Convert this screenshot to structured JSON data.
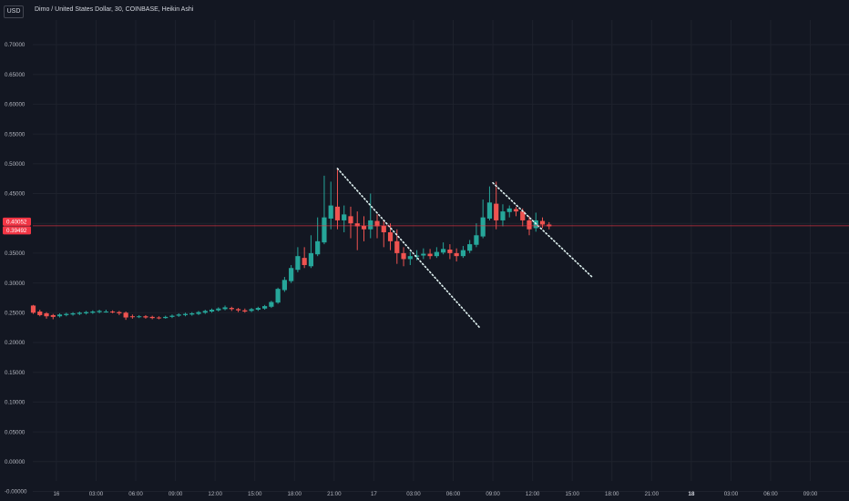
{
  "header": {
    "currency": "USD",
    "title": "Dimo / United States Dollar, 30, COINBASE, Heikin Ashi"
  },
  "colors": {
    "background": "#131722",
    "grid": "#1e222d",
    "up": "#26a69a",
    "down": "#ef5350",
    "trendline": "#e0f2f1",
    "price_line": "#f23645"
  },
  "chart_data": {
    "type": "candlestick",
    "style": "Heikin Ashi",
    "interval": "30",
    "exchange": "COINBASE",
    "grid": true,
    "ylim": [
      -0.03,
      0.73
    ],
    "y_ticks": [
      "0.70000",
      "0.65000",
      "0.60000",
      "0.55000",
      "0.50000",
      "0.45000",
      "0.40000",
      "0.35000",
      "0.30000",
      "0.25000",
      "0.20000",
      "0.15000",
      "0.10000",
      "0.05000",
      "0.00000",
      "-0.00000"
    ],
    "x_ticks": [
      {
        "label": "16",
        "bold": false,
        "bar": 3.5
      },
      {
        "label": "03:00",
        "bold": false,
        "bar": 9.5
      },
      {
        "label": "06:00",
        "bold": false,
        "bar": 15.5
      },
      {
        "label": "09:00",
        "bold": false,
        "bar": 21.5
      },
      {
        "label": "12:00",
        "bold": false,
        "bar": 27.5
      },
      {
        "label": "15:00",
        "bold": false,
        "bar": 33.5
      },
      {
        "label": "18:00",
        "bold": false,
        "bar": 39.5
      },
      {
        "label": "21:00",
        "bold": false,
        "bar": 45.5
      },
      {
        "label": "17",
        "bold": false,
        "bar": 51.5
      },
      {
        "label": "03:00",
        "bold": false,
        "bar": 57.5
      },
      {
        "label": "06:00",
        "bold": false,
        "bar": 63.5
      },
      {
        "label": "09:00",
        "bold": false,
        "bar": 69.5
      },
      {
        "label": "12:00",
        "bold": false,
        "bar": 75.5
      },
      {
        "label": "15:00",
        "bold": false,
        "bar": 81.5
      },
      {
        "label": "18:00",
        "bold": false,
        "bar": 87.5
      },
      {
        "label": "21:00",
        "bold": false,
        "bar": 93.5
      },
      {
        "label": "18",
        "bold": true,
        "bar": 99.5
      },
      {
        "label": "03:00",
        "bold": false,
        "bar": 105.5
      },
      {
        "label": "06:00",
        "bold": false,
        "bar": 111.5
      },
      {
        "label": "09:00",
        "bold": false,
        "bar": 117.5
      }
    ],
    "candles": [
      [
        0.262,
        0.25,
        0.263,
        0.248
      ],
      [
        0.252,
        0.246,
        0.255,
        0.244
      ],
      [
        0.249,
        0.244,
        0.251,
        0.24
      ],
      [
        0.246,
        0.243,
        0.248,
        0.239
      ],
      [
        0.244,
        0.247,
        0.249,
        0.242
      ],
      [
        0.246,
        0.248,
        0.25,
        0.244
      ],
      [
        0.247,
        0.249,
        0.251,
        0.245
      ],
      [
        0.248,
        0.25,
        0.252,
        0.246
      ],
      [
        0.249,
        0.251,
        0.253,
        0.247
      ],
      [
        0.25,
        0.252,
        0.254,
        0.248
      ],
      [
        0.251,
        0.253,
        0.255,
        0.249
      ],
      [
        0.252,
        0.252,
        0.255,
        0.25
      ],
      [
        0.252,
        0.251,
        0.254,
        0.249
      ],
      [
        0.251,
        0.249,
        0.253,
        0.246
      ],
      [
        0.25,
        0.242,
        0.252,
        0.238
      ],
      [
        0.244,
        0.243,
        0.247,
        0.24
      ],
      [
        0.243,
        0.244,
        0.246,
        0.241
      ],
      [
        0.244,
        0.242,
        0.246,
        0.24
      ],
      [
        0.243,
        0.241,
        0.245,
        0.239
      ],
      [
        0.242,
        0.241,
        0.244,
        0.239
      ],
      [
        0.241,
        0.243,
        0.245,
        0.24
      ],
      [
        0.243,
        0.245,
        0.247,
        0.241
      ],
      [
        0.245,
        0.247,
        0.249,
        0.243
      ],
      [
        0.246,
        0.248,
        0.25,
        0.244
      ],
      [
        0.247,
        0.249,
        0.251,
        0.245
      ],
      [
        0.248,
        0.251,
        0.253,
        0.246
      ],
      [
        0.25,
        0.253,
        0.255,
        0.248
      ],
      [
        0.252,
        0.255,
        0.257,
        0.25
      ],
      [
        0.254,
        0.257,
        0.259,
        0.252
      ],
      [
        0.256,
        0.259,
        0.262,
        0.254
      ],
      [
        0.258,
        0.256,
        0.26,
        0.253
      ],
      [
        0.256,
        0.254,
        0.258,
        0.251
      ],
      [
        0.254,
        0.252,
        0.257,
        0.25
      ],
      [
        0.253,
        0.256,
        0.258,
        0.251
      ],
      [
        0.255,
        0.258,
        0.26,
        0.253
      ],
      [
        0.257,
        0.261,
        0.263,
        0.255
      ],
      [
        0.26,
        0.268,
        0.27,
        0.258
      ],
      [
        0.267,
        0.29,
        0.292,
        0.265
      ],
      [
        0.288,
        0.305,
        0.31,
        0.285
      ],
      [
        0.303,
        0.325,
        0.33,
        0.3
      ],
      [
        0.322,
        0.345,
        0.36,
        0.318
      ],
      [
        0.342,
        0.33,
        0.36,
        0.325
      ],
      [
        0.328,
        0.35,
        0.38,
        0.325
      ],
      [
        0.348,
        0.37,
        0.41,
        0.345
      ],
      [
        0.368,
        0.41,
        0.48,
        0.365
      ],
      [
        0.408,
        0.43,
        0.47,
        0.39
      ],
      [
        0.428,
        0.405,
        0.493,
        0.39
      ],
      [
        0.405,
        0.415,
        0.43,
        0.385
      ],
      [
        0.412,
        0.4,
        0.428,
        0.375
      ],
      [
        0.4,
        0.395,
        0.42,
        0.355
      ],
      [
        0.396,
        0.39,
        0.412,
        0.37
      ],
      [
        0.39,
        0.405,
        0.45,
        0.375
      ],
      [
        0.404,
        0.395,
        0.415,
        0.375
      ],
      [
        0.396,
        0.385,
        0.405,
        0.36
      ],
      [
        0.385,
        0.37,
        0.4,
        0.355
      ],
      [
        0.37,
        0.35,
        0.39,
        0.332
      ],
      [
        0.35,
        0.34,
        0.36,
        0.328
      ],
      [
        0.34,
        0.345,
        0.352,
        0.33
      ],
      [
        0.344,
        0.346,
        0.355,
        0.338
      ],
      [
        0.346,
        0.349,
        0.358,
        0.34
      ],
      [
        0.349,
        0.345,
        0.357,
        0.34
      ],
      [
        0.345,
        0.352,
        0.36,
        0.342
      ],
      [
        0.351,
        0.357,
        0.368,
        0.348
      ],
      [
        0.356,
        0.35,
        0.365,
        0.34
      ],
      [
        0.35,
        0.345,
        0.358,
        0.336
      ],
      [
        0.345,
        0.355,
        0.362,
        0.342
      ],
      [
        0.354,
        0.365,
        0.372,
        0.35
      ],
      [
        0.364,
        0.38,
        0.4,
        0.36
      ],
      [
        0.378,
        0.41,
        0.44,
        0.375
      ],
      [
        0.408,
        0.435,
        0.462,
        0.405
      ],
      [
        0.433,
        0.405,
        0.47,
        0.39
      ],
      [
        0.405,
        0.42,
        0.432,
        0.395
      ],
      [
        0.419,
        0.425,
        0.43,
        0.41
      ],
      [
        0.424,
        0.42,
        0.428,
        0.412
      ],
      [
        0.42,
        0.405,
        0.425,
        0.395
      ],
      [
        0.405,
        0.39,
        0.412,
        0.38
      ],
      [
        0.392,
        0.405,
        0.418,
        0.386
      ],
      [
        0.404,
        0.398,
        0.41,
        0.392
      ],
      [
        0.398,
        0.395,
        0.402,
        0.39
      ]
    ],
    "trendlines": [
      {
        "from": [
          46,
          0.492
        ],
        "to": [
          67.5,
          0.225
        ]
      },
      {
        "from": [
          69.5,
          0.468
        ],
        "to": [
          84.5,
          0.31
        ]
      }
    ],
    "price_tags": [
      {
        "label": "0.40052",
        "value": 0.40052
      },
      {
        "label": "0.39492",
        "value": 0.39492
      }
    ]
  }
}
